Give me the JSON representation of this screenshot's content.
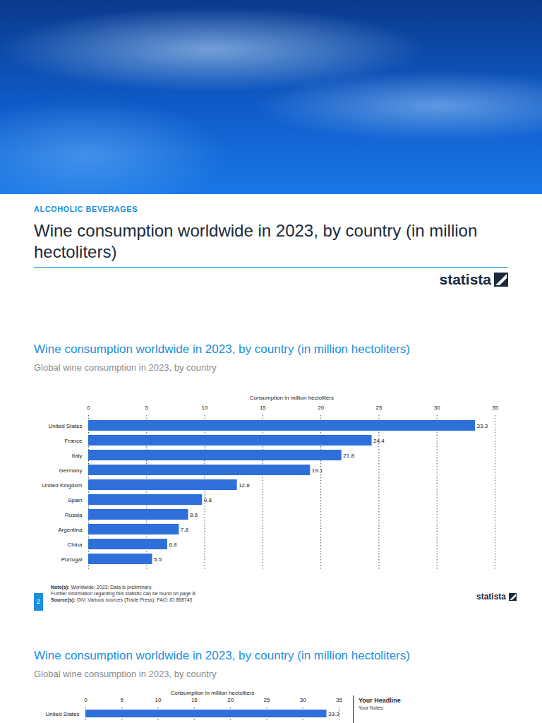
{
  "header": {
    "category": "ALCOHOLIC BEVERAGES",
    "title": "Wine consumption worldwide in 2023, by country (in million hectoliters)",
    "brand": "statista"
  },
  "chart_data": [
    {
      "type": "bar",
      "orientation": "horizontal",
      "title": "Wine consumption worldwide in 2023, by country (in million hectoliters)",
      "subtitle": "Global wine consumption in 2023, by country",
      "xlabel": "Consumption in million hectoliters",
      "categories": [
        "United States",
        "France",
        "Italy",
        "Germany",
        "United Kingdom",
        "Spain",
        "Russia",
        "Argentina",
        "China",
        "Portugal"
      ],
      "values": [
        33.3,
        24.4,
        21.8,
        19.1,
        12.8,
        9.8,
        8.6,
        7.8,
        6.8,
        5.5
      ],
      "color": "#2e6fd9",
      "xlim": [
        0,
        35
      ],
      "xticks": [
        0,
        5,
        10,
        15,
        20,
        25,
        30,
        35
      ],
      "grid": true,
      "data_labels": true
    },
    {
      "type": "bar",
      "orientation": "horizontal",
      "title": "Wine consumption worldwide in 2023, by country (in million hectoliters)",
      "subtitle": "Global wine consumption in 2023, by country",
      "xlabel": "Consumption in million hectoliters",
      "categories": [
        "United States"
      ],
      "values": [
        33.3
      ],
      "color": "#2e6fd9",
      "xlim": [
        0,
        35
      ],
      "xticks": [
        0,
        5,
        10,
        15,
        20,
        25,
        30,
        35
      ],
      "grid": true,
      "data_labels": true
    }
  ],
  "footer": {
    "notes": [
      {
        "label": "Note(s):",
        "text": "Worldwide; 2023; Data is preliminary."
      },
      {
        "label": "",
        "text": "Further information regarding this statistic can be found on page 8."
      },
      {
        "label": "Source(s):",
        "text": "OIV; Various sources (Trade Press); FAO; ID 858743"
      }
    ],
    "page": 2,
    "brand": "statista"
  },
  "side_panel": {
    "headline": "Your Headline",
    "notes": "Your Notes:"
  }
}
